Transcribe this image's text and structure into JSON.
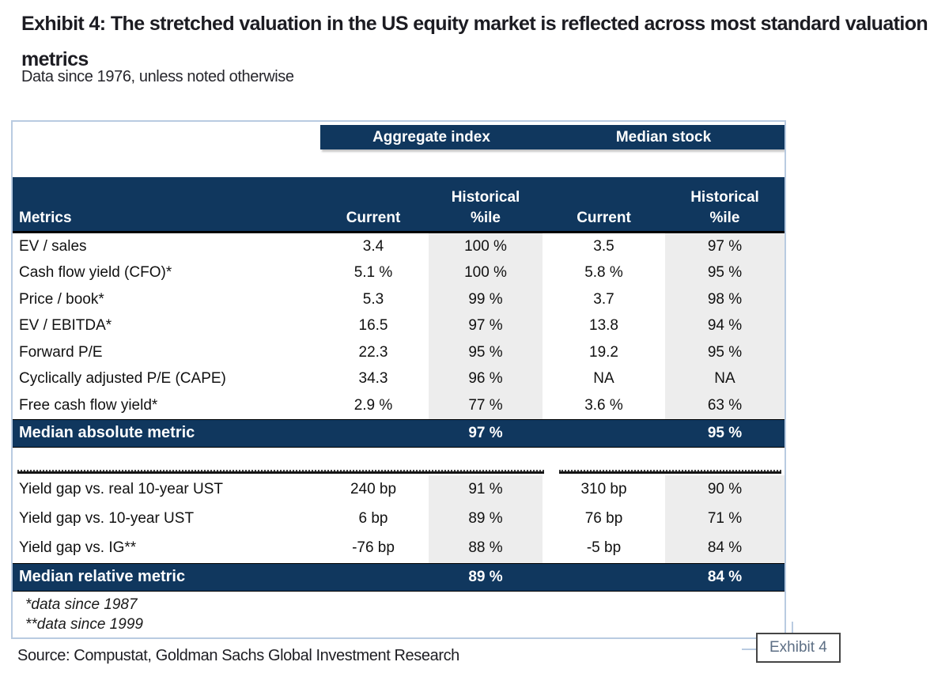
{
  "title": {
    "line1": "Exhibit 4: The stretched valuation in the US equity market is reflected across most standard valuation",
    "line2": "metrics"
  },
  "subtitle": "Data since 1976, unless noted otherwise",
  "table": {
    "group_headers": [
      "Aggregate index",
      "Median stock"
    ],
    "col_headers": {
      "metrics": "Metrics",
      "current": "Current",
      "historical_line1": "Historical",
      "historical_line2": "%ile"
    },
    "absolute_rows": [
      {
        "metric": "EV / sales",
        "agg_current": "3.4",
        "agg_pct": "100 %",
        "med_current": "3.5",
        "med_pct": "97 %"
      },
      {
        "metric": "Cash flow yield (CFO)*",
        "agg_current": "5.1 %",
        "agg_pct": "100 %",
        "med_current": "5.8 %",
        "med_pct": "95 %"
      },
      {
        "metric": "Price / book*",
        "agg_current": "5.3",
        "agg_pct": "99 %",
        "med_current": "3.7",
        "med_pct": "98 %"
      },
      {
        "metric": "EV / EBITDA*",
        "agg_current": "16.5",
        "agg_pct": "97 %",
        "med_current": "13.8",
        "med_pct": "94 %"
      },
      {
        "metric": "Forward P/E",
        "agg_current": "22.3",
        "agg_pct": "95 %",
        "med_current": "19.2",
        "med_pct": "95 %"
      },
      {
        "metric": "Cyclically adjusted P/E (CAPE)",
        "agg_current": "34.3",
        "agg_pct": "96 %",
        "med_current": "NA",
        "med_pct": "NA"
      },
      {
        "metric": "Free cash flow yield*",
        "agg_current": "2.9 %",
        "agg_pct": "77 %",
        "med_current": "3.6 %",
        "med_pct": "63 %"
      }
    ],
    "median_absolute": {
      "label": "Median absolute metric",
      "agg_pct": "97 %",
      "med_pct": "95 %"
    },
    "relative_rows": [
      {
        "metric": "Yield gap vs. real 10-year UST",
        "agg_current": "240 bp",
        "agg_pct": "91 %",
        "med_current": "310 bp",
        "med_pct": "90 %"
      },
      {
        "metric": "Yield gap vs. 10-year UST",
        "agg_current": "6 bp",
        "agg_pct": "89 %",
        "med_current": "76 bp",
        "med_pct": "71 %"
      },
      {
        "metric": "Yield gap vs. IG**",
        "agg_current": "-76 bp",
        "agg_pct": "88 %",
        "med_current": "-5 bp",
        "med_pct": "84 %"
      }
    ],
    "median_relative": {
      "label": "Median relative metric",
      "agg_pct": "89 %",
      "med_pct": "84 %"
    },
    "footnotes": [
      "*data since 1987",
      "**data since 1999"
    ]
  },
  "source": "Source: Compustat, Goldman Sachs Global Investment Research",
  "exhibit_badge": "Exhibit 4",
  "colors": {
    "navy": "#10375e",
    "percentile_band": "#ededed",
    "table_border": "#b9cbe1",
    "text": "#111111",
    "badge_text": "#5d6f85"
  }
}
